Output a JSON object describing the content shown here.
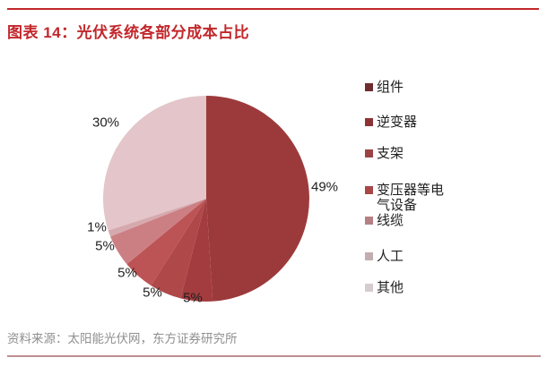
{
  "header": {
    "title": "图表 14：光伏系统各部分成本占比"
  },
  "source": {
    "text": "资料来源：太阳能光伏网，东方证券研究所"
  },
  "colors": {
    "accent_red": "#C2272B",
    "bottom_rule": "#C08F91",
    "source_text": "#8F8F8F",
    "label_text": "#1F1F1F"
  },
  "chart_data": {
    "type": "pie",
    "title": "光伏系统各部分成本占比",
    "categories": [
      "组件",
      "逆变器",
      "支架",
      "变压器等电气设备",
      "线缆",
      "人工",
      "其他"
    ],
    "values": [
      49,
      5,
      5,
      5,
      5,
      1,
      30
    ],
    "labels": [
      "49%",
      "5%",
      "5%",
      "5%",
      "5%",
      "1%",
      "30%"
    ],
    "slice_colors": [
      "#9C3A3B",
      "#A23C3E",
      "#AF4849",
      "#BC5355",
      "#CC7F83",
      "#D5A9AE",
      "#E3C5CA"
    ],
    "legend_colors": [
      "#702C2E",
      "#8C3336",
      "#9C4345",
      "#A84648",
      "#B58082",
      "#C2AEB0",
      "#D6CBCE"
    ],
    "start_angle": "12-oclock",
    "direction": "clockwise",
    "legend_position": "right",
    "data_labels": "outside"
  }
}
